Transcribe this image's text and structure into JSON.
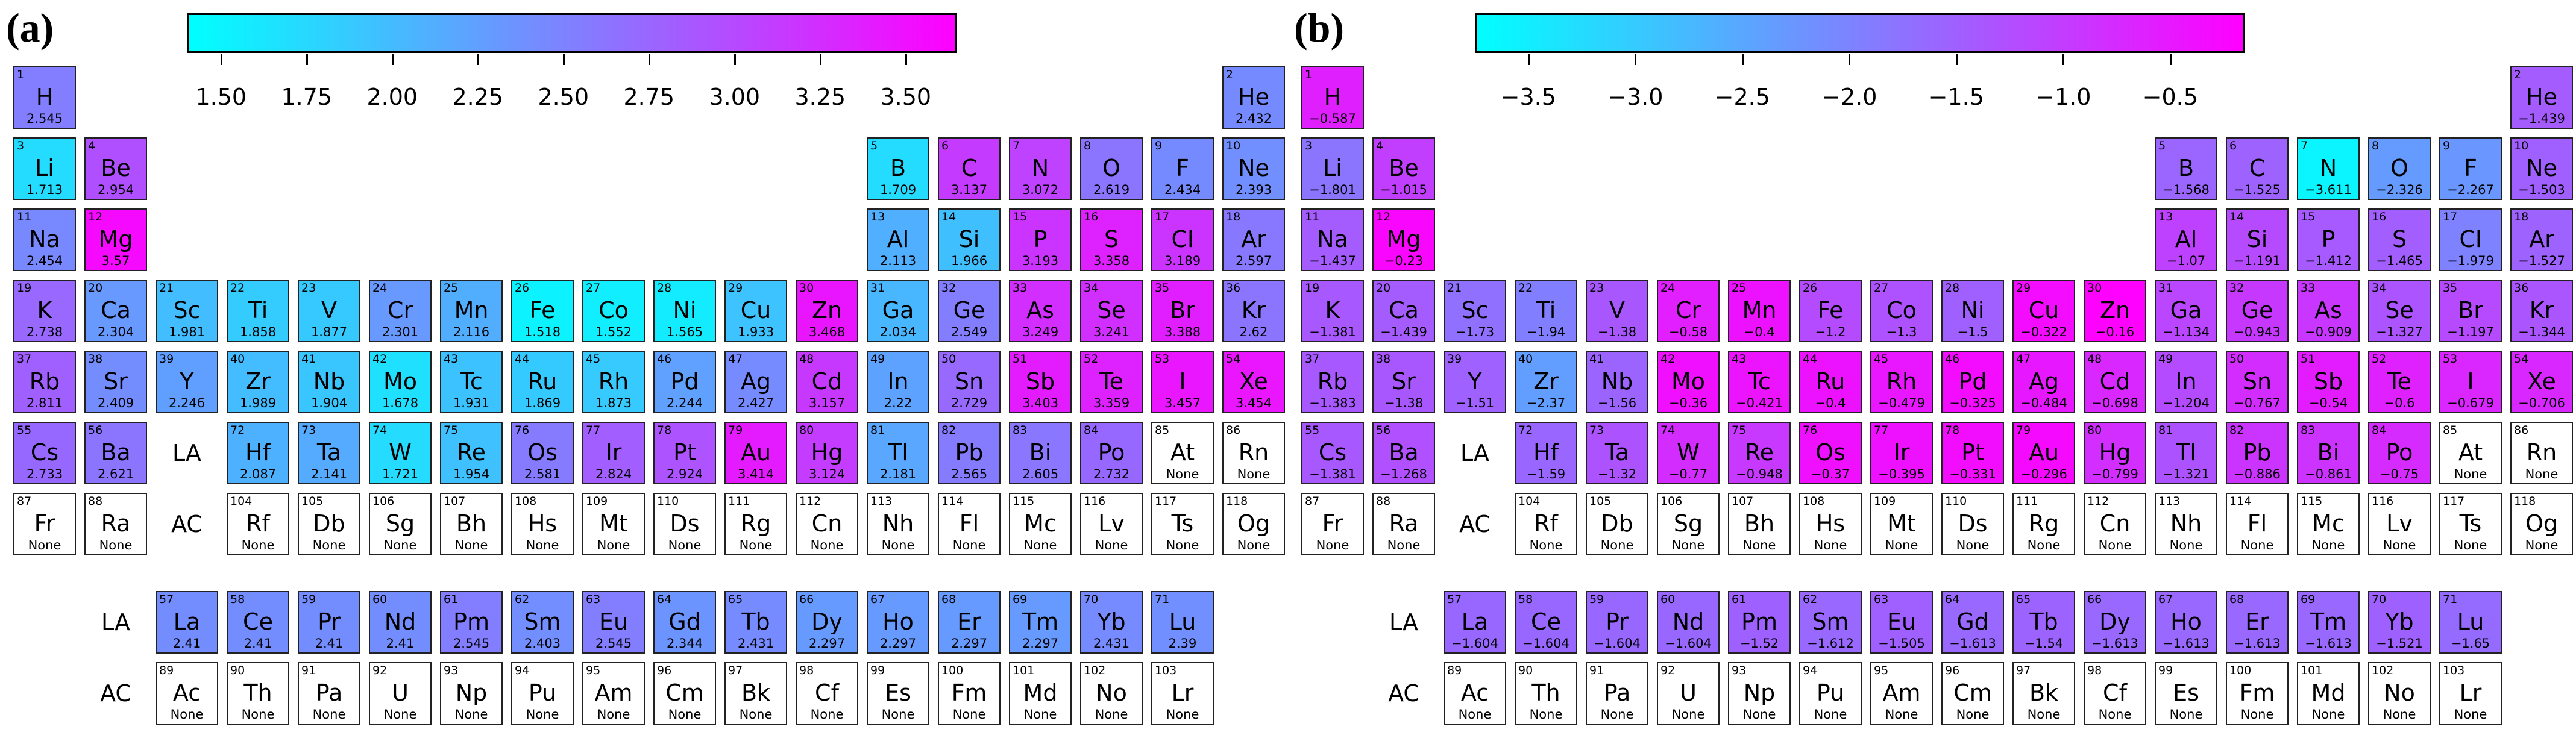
{
  "colormap": {
    "low": "#00ffff",
    "mid": "#8080ff",
    "high": "#ff00ff",
    "none": "#ffffff"
  },
  "row_labels": {
    "la": "LA",
    "ac": "AC"
  },
  "elements": [
    [
      "H",
      1,
      1,
      1
    ],
    [
      "He",
      2,
      18,
      1
    ],
    [
      "Li",
      3,
      1,
      2
    ],
    [
      "Be",
      4,
      2,
      2
    ],
    [
      "B",
      5,
      13,
      2
    ],
    [
      "C",
      6,
      14,
      2
    ],
    [
      "N",
      7,
      15,
      2
    ],
    [
      "O",
      8,
      16,
      2
    ],
    [
      "F",
      9,
      17,
      2
    ],
    [
      "Ne",
      10,
      18,
      2
    ],
    [
      "Na",
      11,
      1,
      3
    ],
    [
      "Mg",
      12,
      2,
      3
    ],
    [
      "Al",
      13,
      13,
      3
    ],
    [
      "Si",
      14,
      14,
      3
    ],
    [
      "P",
      15,
      15,
      3
    ],
    [
      "S",
      16,
      16,
      3
    ],
    [
      "Cl",
      17,
      17,
      3
    ],
    [
      "Ar",
      18,
      18,
      3
    ],
    [
      "K",
      19,
      1,
      4
    ],
    [
      "Ca",
      20,
      2,
      4
    ],
    [
      "Sc",
      21,
      3,
      4
    ],
    [
      "Ti",
      22,
      4,
      4
    ],
    [
      "V",
      23,
      5,
      4
    ],
    [
      "Cr",
      24,
      6,
      4
    ],
    [
      "Mn",
      25,
      7,
      4
    ],
    [
      "Fe",
      26,
      8,
      4
    ],
    [
      "Co",
      27,
      9,
      4
    ],
    [
      "Ni",
      28,
      10,
      4
    ],
    [
      "Cu",
      29,
      11,
      4
    ],
    [
      "Zn",
      30,
      12,
      4
    ],
    [
      "Ga",
      31,
      13,
      4
    ],
    [
      "Ge",
      32,
      14,
      4
    ],
    [
      "As",
      33,
      15,
      4
    ],
    [
      "Se",
      34,
      16,
      4
    ],
    [
      "Br",
      35,
      17,
      4
    ],
    [
      "Kr",
      36,
      18,
      4
    ],
    [
      "Rb",
      37,
      1,
      5
    ],
    [
      "Sr",
      38,
      2,
      5
    ],
    [
      "Y",
      39,
      3,
      5
    ],
    [
      "Zr",
      40,
      4,
      5
    ],
    [
      "Nb",
      41,
      5,
      5
    ],
    [
      "Mo",
      42,
      6,
      5
    ],
    [
      "Tc",
      43,
      7,
      5
    ],
    [
      "Ru",
      44,
      8,
      5
    ],
    [
      "Rh",
      45,
      9,
      5
    ],
    [
      "Pd",
      46,
      10,
      5
    ],
    [
      "Ag",
      47,
      11,
      5
    ],
    [
      "Cd",
      48,
      12,
      5
    ],
    [
      "In",
      49,
      13,
      5
    ],
    [
      "Sn",
      50,
      14,
      5
    ],
    [
      "Sb",
      51,
      15,
      5
    ],
    [
      "Te",
      52,
      16,
      5
    ],
    [
      "I",
      53,
      17,
      5
    ],
    [
      "Xe",
      54,
      18,
      5
    ],
    [
      "Cs",
      55,
      1,
      6
    ],
    [
      "Ba",
      56,
      2,
      6
    ],
    [
      "Hf",
      72,
      4,
      6
    ],
    [
      "Ta",
      73,
      5,
      6
    ],
    [
      "W",
      74,
      6,
      6
    ],
    [
      "Re",
      75,
      7,
      6
    ],
    [
      "Os",
      76,
      8,
      6
    ],
    [
      "Ir",
      77,
      9,
      6
    ],
    [
      "Pt",
      78,
      10,
      6
    ],
    [
      "Au",
      79,
      11,
      6
    ],
    [
      "Hg",
      80,
      12,
      6
    ],
    [
      "Tl",
      81,
      13,
      6
    ],
    [
      "Pb",
      82,
      14,
      6
    ],
    [
      "Bi",
      83,
      15,
      6
    ],
    [
      "Po",
      84,
      16,
      6
    ],
    [
      "At",
      85,
      17,
      6
    ],
    [
      "Rn",
      86,
      18,
      6
    ],
    [
      "Fr",
      87,
      1,
      7
    ],
    [
      "Ra",
      88,
      2,
      7
    ],
    [
      "Rf",
      104,
      4,
      7
    ],
    [
      "Db",
      105,
      5,
      7
    ],
    [
      "Sg",
      106,
      6,
      7
    ],
    [
      "Bh",
      107,
      7,
      7
    ],
    [
      "Hs",
      108,
      8,
      7
    ],
    [
      "Mt",
      109,
      9,
      7
    ],
    [
      "Ds",
      110,
      10,
      7
    ],
    [
      "Rg",
      111,
      11,
      7
    ],
    [
      "Cn",
      112,
      12,
      7
    ],
    [
      "Nh",
      113,
      13,
      7
    ],
    [
      "Fl",
      114,
      14,
      7
    ],
    [
      "Mc",
      115,
      15,
      7
    ],
    [
      "Lv",
      116,
      16,
      7
    ],
    [
      "Ts",
      117,
      17,
      7
    ],
    [
      "Og",
      118,
      18,
      7
    ],
    [
      "La",
      57,
      3,
      9
    ],
    [
      "Ce",
      58,
      4,
      9
    ],
    [
      "Pr",
      59,
      5,
      9
    ],
    [
      "Nd",
      60,
      6,
      9
    ],
    [
      "Pm",
      61,
      7,
      9
    ],
    [
      "Sm",
      62,
      8,
      9
    ],
    [
      "Eu",
      63,
      9,
      9
    ],
    [
      "Gd",
      64,
      10,
      9
    ],
    [
      "Tb",
      65,
      11,
      9
    ],
    [
      "Dy",
      66,
      12,
      9
    ],
    [
      "Ho",
      67,
      13,
      9
    ],
    [
      "Er",
      68,
      14,
      9
    ],
    [
      "Tm",
      69,
      15,
      9
    ],
    [
      "Yb",
      70,
      16,
      9
    ],
    [
      "Lu",
      71,
      17,
      9
    ],
    [
      "Ac",
      89,
      3,
      10
    ],
    [
      "Th",
      90,
      4,
      10
    ],
    [
      "Pa",
      91,
      5,
      10
    ],
    [
      "U",
      92,
      6,
      10
    ],
    [
      "Np",
      93,
      7,
      10
    ],
    [
      "Pu",
      94,
      8,
      10
    ],
    [
      "Am",
      95,
      9,
      10
    ],
    [
      "Cm",
      96,
      10,
      10
    ],
    [
      "Bk",
      97,
      11,
      10
    ],
    [
      "Cf",
      98,
      12,
      10
    ],
    [
      "Es",
      99,
      13,
      10
    ],
    [
      "Fm",
      100,
      14,
      10
    ],
    [
      "Md",
      101,
      15,
      10
    ],
    [
      "No",
      102,
      16,
      10
    ],
    [
      "Lr",
      103,
      17,
      10
    ]
  ],
  "chart_data": [
    {
      "type": "heatmap",
      "label": "(a)",
      "colorbar": {
        "range": [
          1.4,
          3.65
        ],
        "ticks": [
          "1.50",
          "1.75",
          "2.00",
          "2.25",
          "2.50",
          "2.75",
          "3.00",
          "3.25",
          "3.50"
        ]
      },
      "values": {
        "H": "2.545",
        "He": "2.432",
        "Li": "1.713",
        "Be": "2.954",
        "B": "1.709",
        "C": "3.137",
        "N": "3.072",
        "O": "2.619",
        "F": "2.434",
        "Ne": "2.393",
        "Na": "2.454",
        "Mg": "3.57",
        "Al": "2.113",
        "Si": "1.966",
        "P": "3.193",
        "S": "3.358",
        "Cl": "3.189",
        "Ar": "2.597",
        "K": "2.738",
        "Ca": "2.304",
        "Sc": "1.981",
        "Ti": "1.858",
        "V": "1.877",
        "Cr": "2.301",
        "Mn": "2.116",
        "Fe": "1.518",
        "Co": "1.552",
        "Ni": "1.565",
        "Cu": "1.933",
        "Zn": "3.468",
        "Ga": "2.034",
        "Ge": "2.549",
        "As": "3.249",
        "Se": "3.241",
        "Br": "3.388",
        "Kr": "2.62",
        "Rb": "2.811",
        "Sr": "2.409",
        "Y": "2.246",
        "Zr": "1.989",
        "Nb": "1.904",
        "Mo": "1.678",
        "Tc": "1.931",
        "Ru": "1.869",
        "Rh": "1.873",
        "Pd": "2.244",
        "Ag": "2.427",
        "Cd": "3.157",
        "In": "2.22",
        "Sn": "2.729",
        "Sb": "3.403",
        "Te": "3.359",
        "I": "3.457",
        "Xe": "3.454",
        "Cs": "2.733",
        "Ba": "2.621",
        "Hf": "2.087",
        "Ta": "2.141",
        "W": "1.721",
        "Re": "1.954",
        "Os": "2.581",
        "Ir": "2.824",
        "Pt": "2.924",
        "Au": "3.414",
        "Hg": "3.124",
        "Tl": "2.181",
        "Pb": "2.565",
        "Bi": "2.605",
        "Po": "2.732",
        "At": "None",
        "Rn": "None",
        "Fr": "None",
        "Ra": "None",
        "Rf": "None",
        "Db": "None",
        "Sg": "None",
        "Bh": "None",
        "Hs": "None",
        "Mt": "None",
        "Ds": "None",
        "Rg": "None",
        "Cn": "None",
        "Nh": "None",
        "Fl": "None",
        "Mc": "None",
        "Lv": "None",
        "Ts": "None",
        "Og": "None",
        "La": "2.41",
        "Ce": "2.41",
        "Pr": "2.41",
        "Nd": "2.41",
        "Pm": "2.545",
        "Sm": "2.403",
        "Eu": "2.545",
        "Gd": "2.344",
        "Tb": "2.431",
        "Dy": "2.297",
        "Ho": "2.297",
        "Er": "2.297",
        "Tm": "2.297",
        "Yb": "2.431",
        "Lu": "2.39",
        "Ac": "None",
        "Th": "None",
        "Pa": "None",
        "U": "None",
        "Np": "None",
        "Pu": "None",
        "Am": "None",
        "Cm": "None",
        "Bk": "None",
        "Cf": "None",
        "Es": "None",
        "Fm": "None",
        "Md": "None",
        "No": "None",
        "Lr": "None"
      }
    },
    {
      "type": "heatmap",
      "label": "(b)",
      "colorbar": {
        "range": [
          -3.75,
          -0.15
        ],
        "ticks": [
          "−3.5",
          "−3.0",
          "−2.5",
          "−2.0",
          "−1.5",
          "−1.0",
          "−0.5"
        ]
      },
      "values": {
        "H": "−0.587",
        "He": "−1.439",
        "Li": "−1.801",
        "Be": "−1.015",
        "B": "−1.568",
        "C": "−1.525",
        "N": "−3.611",
        "O": "−2.326",
        "F": "−2.267",
        "Ne": "−1.503",
        "Na": "−1.437",
        "Mg": "−0.23",
        "Al": "−1.07",
        "Si": "−1.191",
        "P": "−1.412",
        "S": "−1.465",
        "Cl": "−1.979",
        "Ar": "−1.527",
        "K": "−1.381",
        "Ca": "−1.439",
        "Sc": "−1.73",
        "Ti": "−1.94",
        "V": "−1.38",
        "Cr": "−0.58",
        "Mn": "−0.4",
        "Fe": "−1.2",
        "Co": "−1.3",
        "Ni": "−1.5",
        "Cu": "−0.322",
        "Zn": "−0.16",
        "Ga": "−1.134",
        "Ge": "−0.943",
        "As": "−0.909",
        "Se": "−1.327",
        "Br": "−1.197",
        "Kr": "−1.344",
        "Rb": "−1.383",
        "Sr": "−1.38",
        "Y": "−1.51",
        "Zr": "−2.37",
        "Nb": "−1.56",
        "Mo": "−0.36",
        "Tc": "−0.421",
        "Ru": "−0.4",
        "Rh": "−0.479",
        "Pd": "−0.325",
        "Ag": "−0.484",
        "Cd": "−0.698",
        "In": "−1.204",
        "Sn": "−0.767",
        "Sb": "−0.54",
        "Te": "−0.6",
        "I": "−0.679",
        "Xe": "−0.706",
        "Cs": "−1.381",
        "Ba": "−1.268",
        "Hf": "−1.59",
        "Ta": "−1.32",
        "W": "−0.77",
        "Re": "−0.948",
        "Os": "−0.37",
        "Ir": "−0.395",
        "Pt": "−0.331",
        "Au": "−0.296",
        "Hg": "−0.799",
        "Tl": "−1.321",
        "Pb": "−0.886",
        "Bi": "−0.861",
        "Po": "−0.75",
        "At": "None",
        "Rn": "None",
        "Fr": "None",
        "Ra": "None",
        "Rf": "None",
        "Db": "None",
        "Sg": "None",
        "Bh": "None",
        "Hs": "None",
        "Mt": "None",
        "Ds": "None",
        "Rg": "None",
        "Cn": "None",
        "Nh": "None",
        "Fl": "None",
        "Mc": "None",
        "Lv": "None",
        "Ts": "None",
        "Og": "None",
        "La": "−1.604",
        "Ce": "−1.604",
        "Pr": "−1.604",
        "Nd": "−1.604",
        "Pm": "−1.52",
        "Sm": "−1.612",
        "Eu": "−1.505",
        "Gd": "−1.613",
        "Tb": "−1.54",
        "Dy": "−1.613",
        "Ho": "−1.613",
        "Er": "−1.613",
        "Tm": "−1.613",
        "Yb": "−1.521",
        "Lu": "−1.65",
        "Ac": "None",
        "Th": "None",
        "Pa": "None",
        "U": "None",
        "Np": "None",
        "Pu": "None",
        "Am": "None",
        "Cm": "None",
        "Bk": "None",
        "Cf": "None",
        "Es": "None",
        "Fm": "None",
        "Md": "None",
        "No": "None",
        "Lr": "None"
      }
    }
  ]
}
